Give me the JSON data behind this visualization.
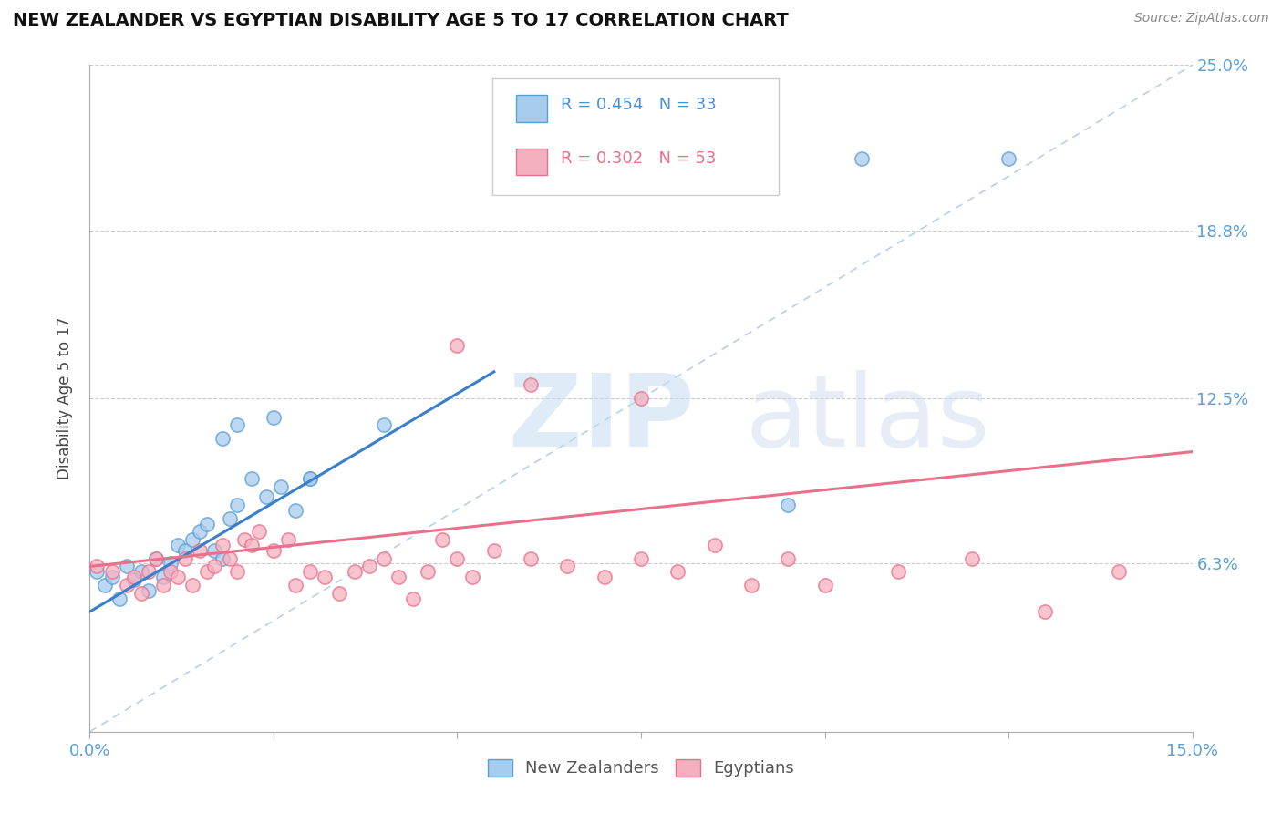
{
  "title": "NEW ZEALANDER VS EGYPTIAN DISABILITY AGE 5 TO 17 CORRELATION CHART",
  "source": "Source: ZipAtlas.com",
  "ylabel": "Disability Age 5 to 17",
  "xlim": [
    0.0,
    0.15
  ],
  "ylim": [
    0.0,
    0.25
  ],
  "xticks": [
    0.0,
    0.025,
    0.05,
    0.075,
    0.1,
    0.125,
    0.15
  ],
  "xticklabels": [
    "0.0%",
    "",
    "",
    "",
    "",
    "",
    "15.0%"
  ],
  "ytick_positions": [
    0.0,
    0.063,
    0.125,
    0.188,
    0.25
  ],
  "ytick_labels": [
    "",
    "6.3%",
    "12.5%",
    "18.8%",
    "25.0%"
  ],
  "nz_color": "#a8ccee",
  "eg_color": "#f5b0c0",
  "nz_edge_color": "#5a9fd4",
  "eg_edge_color": "#e8708a",
  "nz_line_color": "#3a7fc8",
  "eg_line_color": "#e8708a",
  "diagonal_color": "#aac8e8",
  "legend_r_nz": "R = 0.454",
  "legend_n_nz": "N = 33",
  "legend_r_eg": "R = 0.302",
  "legend_n_eg": "N = 53",
  "legend_label_nz": "New Zealanders",
  "legend_label_eg": "Egyptians",
  "nz_line_x0": 0.0,
  "nz_line_y0": 0.045,
  "nz_line_x1": 0.055,
  "nz_line_y1": 0.135,
  "eg_line_x0": 0.0,
  "eg_line_y0": 0.062,
  "eg_line_x1": 0.15,
  "eg_line_y1": 0.105,
  "nz_x": [
    0.001,
    0.002,
    0.003,
    0.004,
    0.005,
    0.006,
    0.007,
    0.008,
    0.009,
    0.01,
    0.011,
    0.012,
    0.013,
    0.014,
    0.015,
    0.016,
    0.017,
    0.018,
    0.019,
    0.02,
    0.022,
    0.024,
    0.026,
    0.028,
    0.03,
    0.018,
    0.02,
    0.025,
    0.03,
    0.04,
    0.095,
    0.105,
    0.125
  ],
  "nz_y": [
    0.06,
    0.055,
    0.058,
    0.05,
    0.062,
    0.057,
    0.06,
    0.053,
    0.065,
    0.058,
    0.063,
    0.07,
    0.068,
    0.072,
    0.075,
    0.078,
    0.068,
    0.065,
    0.08,
    0.085,
    0.095,
    0.088,
    0.092,
    0.083,
    0.095,
    0.11,
    0.115,
    0.118,
    0.095,
    0.115,
    0.085,
    0.215,
    0.215
  ],
  "eg_x": [
    0.001,
    0.003,
    0.005,
    0.006,
    0.007,
    0.008,
    0.009,
    0.01,
    0.011,
    0.012,
    0.013,
    0.014,
    0.015,
    0.016,
    0.017,
    0.018,
    0.019,
    0.02,
    0.021,
    0.022,
    0.023,
    0.025,
    0.027,
    0.028,
    0.03,
    0.032,
    0.034,
    0.036,
    0.038,
    0.04,
    0.042,
    0.044,
    0.046,
    0.048,
    0.05,
    0.052,
    0.055,
    0.06,
    0.065,
    0.07,
    0.075,
    0.08,
    0.085,
    0.09,
    0.095,
    0.1,
    0.11,
    0.12,
    0.05,
    0.06,
    0.075,
    0.13,
    0.14
  ],
  "eg_y": [
    0.062,
    0.06,
    0.055,
    0.058,
    0.052,
    0.06,
    0.065,
    0.055,
    0.06,
    0.058,
    0.065,
    0.055,
    0.068,
    0.06,
    0.062,
    0.07,
    0.065,
    0.06,
    0.072,
    0.07,
    0.075,
    0.068,
    0.072,
    0.055,
    0.06,
    0.058,
    0.052,
    0.06,
    0.062,
    0.065,
    0.058,
    0.05,
    0.06,
    0.072,
    0.065,
    0.058,
    0.068,
    0.065,
    0.062,
    0.058,
    0.065,
    0.06,
    0.07,
    0.055,
    0.065,
    0.055,
    0.06,
    0.065,
    0.145,
    0.13,
    0.125,
    0.045,
    0.06
  ]
}
